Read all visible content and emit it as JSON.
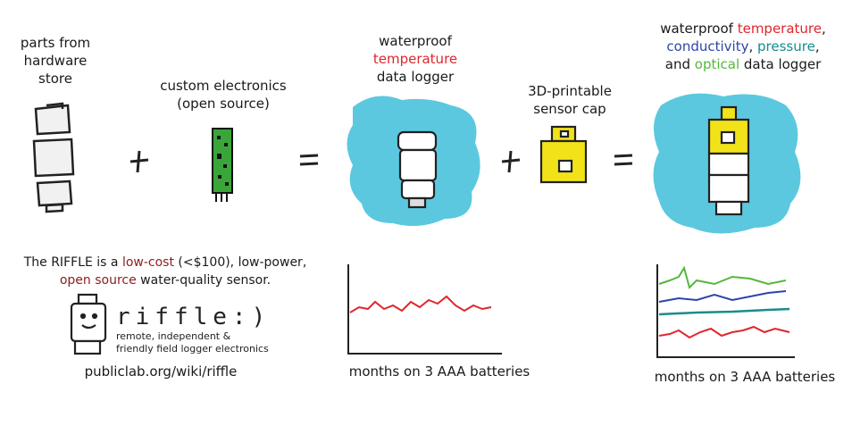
{
  "hardware": {
    "line1": "parts from",
    "line2": "hardware",
    "line3": "store"
  },
  "electronics": {
    "line1": "custom electronics",
    "line2": "(open source)"
  },
  "temp_logger": {
    "line1": "waterproof",
    "line2": "temperature",
    "line3": "data logger"
  },
  "sensor_cap": {
    "line1": "3D-printable",
    "line2": "sensor cap"
  },
  "multi_logger": {
    "w1": "waterproof ",
    "w2": "temperature",
    ",": ",",
    "c1": "conductivity",
    ", ": ", ",
    "c2": "pressure",
    "c3": ",",
    "a1": "and ",
    "a2": "optical",
    "a3": " data logger"
  },
  "description": {
    "p1": "The RIFFLE is a ",
    "p2": "low-cost",
    "p3": " (<$100), low-power,",
    "p4": "open source",
    "p5": " water-quality sensor."
  },
  "logo": {
    "word": "riffle:)",
    "sub1": "remote, independent &",
    "sub2": "friendly field logger electronics"
  },
  "url": "publiclab.org/wiki/riffle",
  "caption1": "months on 3 AAA batteries",
  "caption2": "months on 3 AAA batteries",
  "colors": {
    "water": "#5bc8df",
    "red": "#e0262b",
    "blue": "#2e45a8",
    "teal": "#1a8c8c",
    "green": "#53b83a",
    "yellow": "#f2e21a",
    "board": "#3aa63a"
  }
}
